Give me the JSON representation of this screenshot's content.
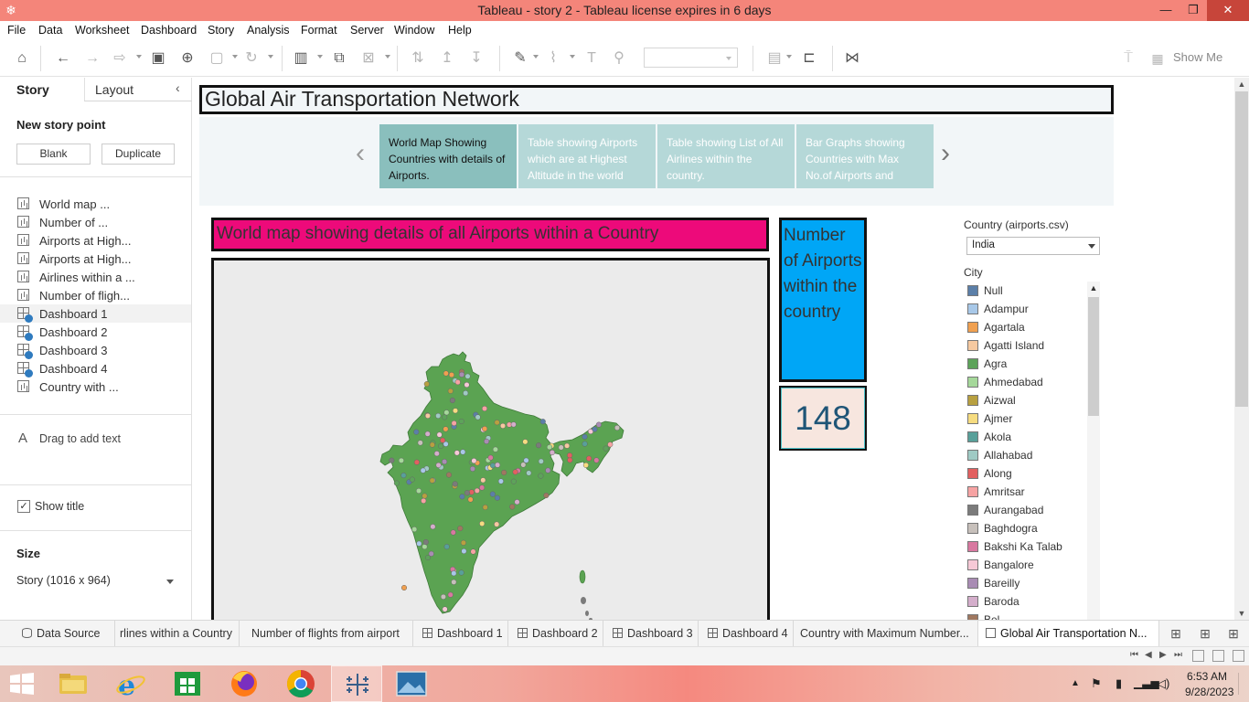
{
  "window": {
    "title": "Tableau - story 2 - Tableau license expires in 6 days"
  },
  "menu": [
    "File",
    "Data",
    "Worksheet",
    "Dashboard",
    "Story",
    "Analysis",
    "Format",
    "Server",
    "Window",
    "Help"
  ],
  "toolbar": {
    "show_me": "Show Me"
  },
  "left_pane": {
    "tab_story": "Story",
    "tab_layout": "Layout",
    "new_story_point": "New story point",
    "blank_button": "Blank",
    "duplicate_button": "Duplicate",
    "sheets": [
      {
        "label": "World map ...",
        "type": "worksheet",
        "checked": false
      },
      {
        "label": "Number of ...",
        "type": "worksheet",
        "checked": false
      },
      {
        "label": "Airports at High...",
        "type": "worksheet",
        "checked": false
      },
      {
        "label": "Airports at High...",
        "type": "worksheet",
        "checked": false
      },
      {
        "label": "Airlines within a ...",
        "type": "worksheet",
        "checked": false
      },
      {
        "label": "Number of fligh...",
        "type": "worksheet",
        "checked": false
      },
      {
        "label": "Dashboard 1",
        "type": "dashboard",
        "checked": true
      },
      {
        "label": "Dashboard 2",
        "type": "dashboard",
        "checked": true
      },
      {
        "label": "Dashboard 3",
        "type": "dashboard",
        "checked": true
      },
      {
        "label": "Dashboard 4",
        "type": "dashboard",
        "checked": true
      },
      {
        "label": "Country with ...",
        "type": "worksheet",
        "checked": false
      }
    ],
    "drag_to_add_text": "Drag to add text",
    "show_title": "Show title",
    "show_title_checked": true,
    "size_label": "Size",
    "size_value": "Story (1016 x 964)"
  },
  "story": {
    "title": "Global Air Transportation Network",
    "story_points": [
      {
        "text": "World Map Showing Countries with details of  Airports.",
        "active": true
      },
      {
        "text": "Table showing Airports which are at Highest Altitude in the world",
        "active": false
      },
      {
        "text": "Table showing List of All Airlines within the country.",
        "active": false
      },
      {
        "text": "Bar Graphs showing Countries  with Max No.of Airports and",
        "active": false
      }
    ],
    "prev_arrow": "‹",
    "next_arrow": "›"
  },
  "dashboard": {
    "map_title": "World map showing details of all Airports within a Country",
    "kpi_title": "Number of Airports within the country",
    "kpi_value": "148",
    "country_filter_label": "Country (airports.csv)",
    "country_filter_value": "India",
    "city_legend_label": "City",
    "city_legend": [
      {
        "name": "Null",
        "color": "#5b7fa8"
      },
      {
        "name": "Adampur",
        "color": "#a8c8e8"
      },
      {
        "name": "Agartala",
        "color": "#f0a050"
      },
      {
        "name": "Agatti Island",
        "color": "#f6c9a0"
      },
      {
        "name": "Agra",
        "color": "#5da35a"
      },
      {
        "name": "Ahmedabad",
        "color": "#a5d89a"
      },
      {
        "name": "Aizwal",
        "color": "#b8a040"
      },
      {
        "name": "Ajmer",
        "color": "#f6dc80"
      },
      {
        "name": "Akola",
        "color": "#58a09a"
      },
      {
        "name": "Allahabad",
        "color": "#9fcac4"
      },
      {
        "name": "Along",
        "color": "#e26060"
      },
      {
        "name": "Amritsar",
        "color": "#f6a3a3"
      },
      {
        "name": "Aurangabad",
        "color": "#7b7b7b"
      },
      {
        "name": "Baghdogra",
        "color": "#c7c0bb"
      },
      {
        "name": "Bakshi Ka Talab",
        "color": "#d878a0"
      },
      {
        "name": "Bangalore",
        "color": "#f6c9d6"
      },
      {
        "name": "Bareilly",
        "color": "#a98cb4"
      },
      {
        "name": "Baroda",
        "color": "#d4aecb"
      },
      {
        "name": "Bel...",
        "color": "#a07860"
      }
    ],
    "map_colors": {
      "land": "#5ba352",
      "background": "#ebebeb",
      "border": "#3e7a38"
    }
  },
  "sheet_tabs": [
    {
      "label": "Data Source",
      "icon": "ds",
      "active": false
    },
    {
      "label": "rlines within a Country",
      "icon": "",
      "active": false
    },
    {
      "label": "Number of flights from airport",
      "icon": "",
      "active": false
    },
    {
      "label": "Dashboard 1",
      "icon": "db",
      "active": false
    },
    {
      "label": "Dashboard 2",
      "icon": "db",
      "active": false
    },
    {
      "label": "Dashboard 3",
      "icon": "db",
      "active": false
    },
    {
      "label": "Dashboard 4",
      "icon": "db",
      "active": false
    },
    {
      "label": "Country with Maximum Number...",
      "icon": "",
      "active": false
    },
    {
      "label": "Global Air Transportation N...",
      "icon": "story",
      "active": true
    }
  ],
  "taskbar": {
    "time": "6:53 AM",
    "date": "9/28/2023"
  }
}
